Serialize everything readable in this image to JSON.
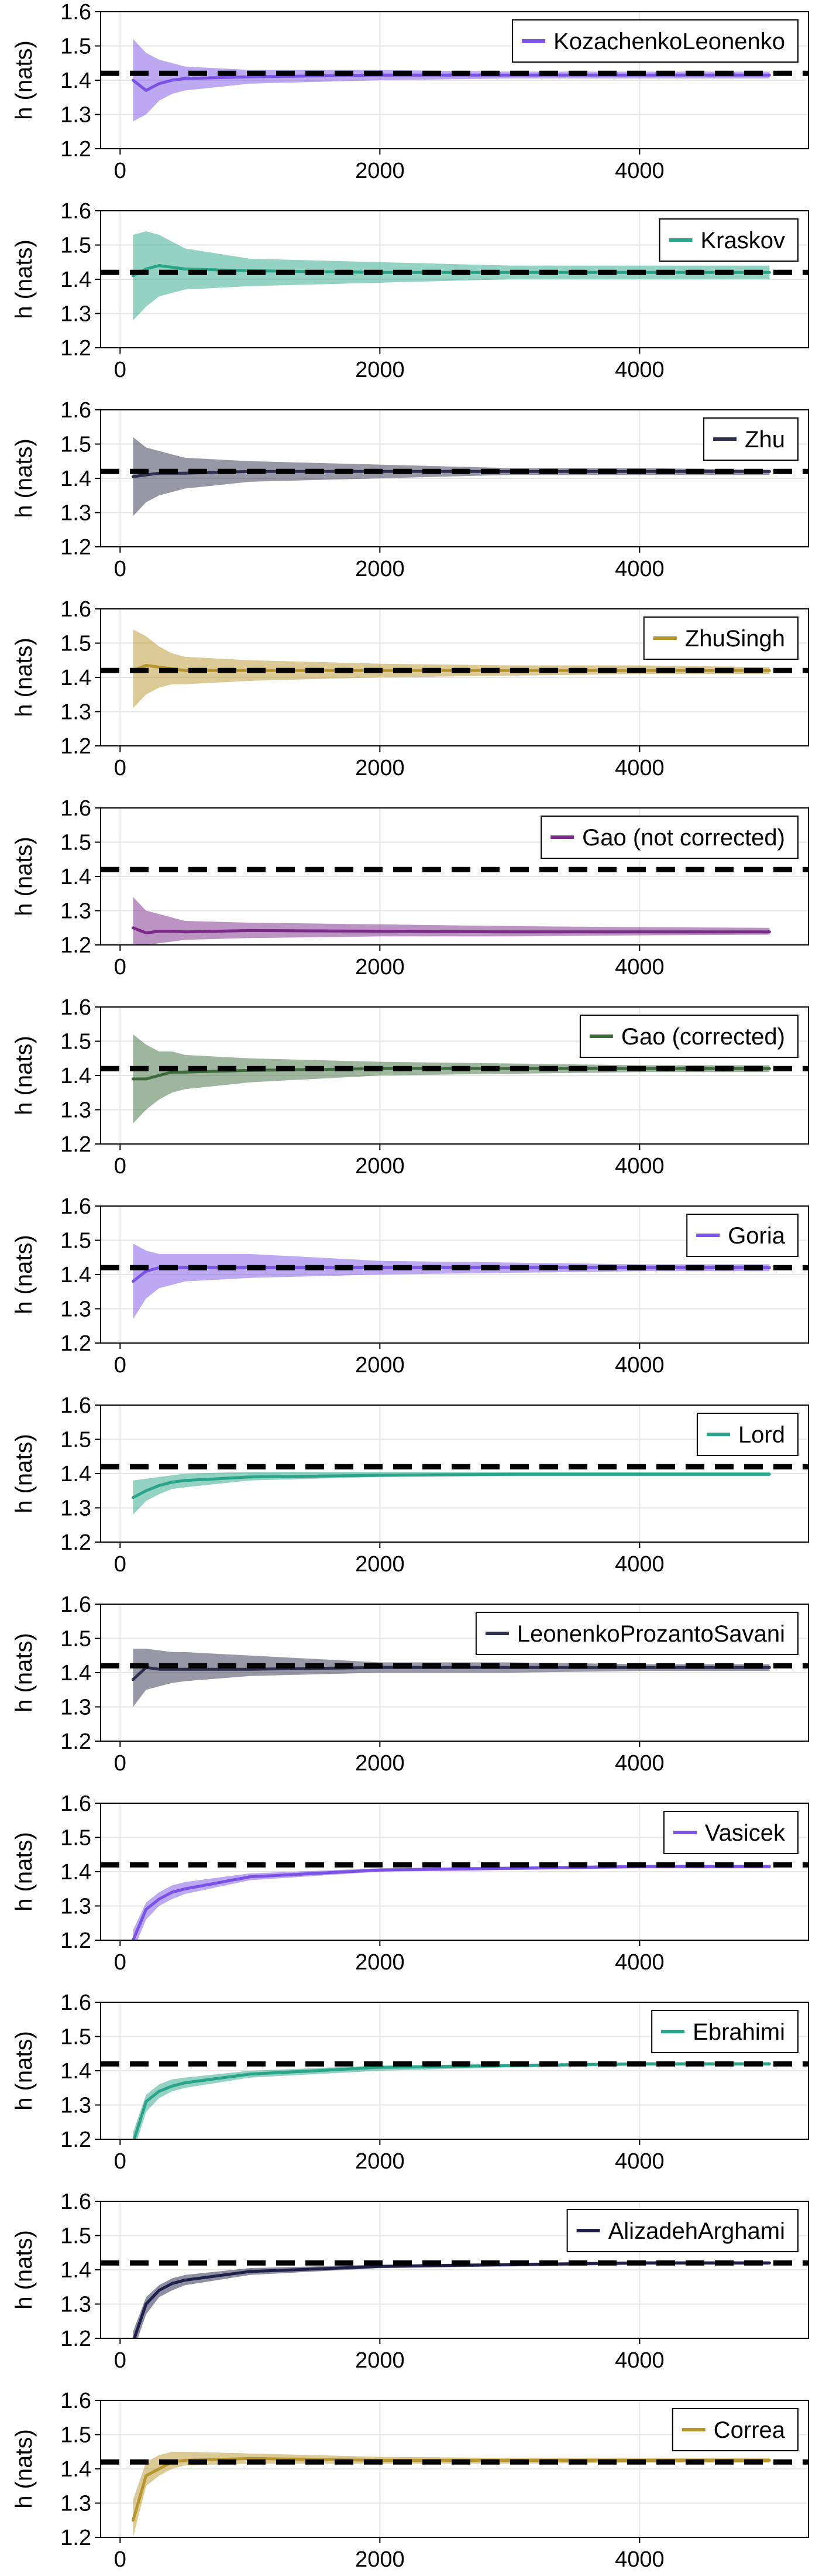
{
  "chart_data": [
    {
      "type": "line",
      "ylabel": "h (nats)",
      "ylim": [
        1.2,
        1.6
      ],
      "xlim": [
        -150,
        5300
      ],
      "xticks": [
        0,
        2000,
        4000
      ],
      "yticks": [
        1.2,
        1.3,
        1.4,
        1.5,
        1.6
      ],
      "reference_y": 1.42,
      "grid": true,
      "legend_position": "top-right",
      "series": [
        {
          "name": "KozachenkoLeonenko",
          "color": "#7b52e6",
          "x": [
            100,
            200,
            300,
            400,
            500,
            1000,
            2000,
            3000,
            4000,
            5000
          ],
          "y": [
            1.4,
            1.37,
            1.39,
            1.4,
            1.405,
            1.41,
            1.415,
            1.415,
            1.415,
            1.415
          ],
          "lower": [
            1.28,
            1.3,
            1.34,
            1.36,
            1.37,
            1.39,
            1.4,
            1.405,
            1.405,
            1.405
          ],
          "upper": [
            1.52,
            1.48,
            1.46,
            1.45,
            1.44,
            1.43,
            1.43,
            1.425,
            1.425,
            1.425
          ]
        }
      ]
    },
    {
      "type": "line",
      "ylabel": "h (nats)",
      "ylim": [
        1.2,
        1.6
      ],
      "xlim": [
        -150,
        5300
      ],
      "xticks": [
        0,
        2000,
        4000
      ],
      "yticks": [
        1.2,
        1.3,
        1.4,
        1.5,
        1.6
      ],
      "reference_y": 1.42,
      "grid": true,
      "legend_position": "top-right",
      "series": [
        {
          "name": "Kraskov",
          "color": "#2aa58a",
          "x": [
            100,
            200,
            300,
            400,
            500,
            1000,
            2000,
            3000,
            4000,
            5000
          ],
          "y": [
            1.41,
            1.43,
            1.44,
            1.435,
            1.43,
            1.425,
            1.42,
            1.42,
            1.42,
            1.42
          ],
          "lower": [
            1.28,
            1.32,
            1.35,
            1.36,
            1.37,
            1.38,
            1.39,
            1.4,
            1.4,
            1.4
          ],
          "upper": [
            1.53,
            1.54,
            1.53,
            1.51,
            1.49,
            1.46,
            1.45,
            1.44,
            1.44,
            1.44
          ]
        }
      ]
    },
    {
      "type": "line",
      "ylabel": "h (nats)",
      "ylim": [
        1.2,
        1.6
      ],
      "xlim": [
        -150,
        5300
      ],
      "xticks": [
        0,
        2000,
        4000
      ],
      "yticks": [
        1.2,
        1.3,
        1.4,
        1.5,
        1.6
      ],
      "reference_y": 1.42,
      "grid": true,
      "legend_position": "top-right",
      "series": [
        {
          "name": "Zhu",
          "color": "#2f2f4e",
          "x": [
            100,
            200,
            300,
            400,
            500,
            1000,
            2000,
            3000,
            4000,
            5000
          ],
          "y": [
            1.405,
            1.41,
            1.415,
            1.415,
            1.415,
            1.42,
            1.42,
            1.42,
            1.42,
            1.42
          ],
          "lower": [
            1.29,
            1.33,
            1.35,
            1.36,
            1.37,
            1.39,
            1.4,
            1.41,
            1.41,
            1.41
          ],
          "upper": [
            1.52,
            1.49,
            1.48,
            1.47,
            1.46,
            1.45,
            1.44,
            1.43,
            1.43,
            1.425
          ]
        }
      ]
    },
    {
      "type": "line",
      "ylabel": "h (nats)",
      "ylim": [
        1.2,
        1.6
      ],
      "xlim": [
        -150,
        5300
      ],
      "xticks": [
        0,
        2000,
        4000
      ],
      "yticks": [
        1.2,
        1.3,
        1.4,
        1.5,
        1.6
      ],
      "reference_y": 1.42,
      "grid": true,
      "legend_position": "top-right",
      "series": [
        {
          "name": "ZhuSingh",
          "color": "#b8962e",
          "x": [
            100,
            200,
            300,
            400,
            500,
            1000,
            2000,
            3000,
            4000,
            5000
          ],
          "y": [
            1.42,
            1.435,
            1.43,
            1.425,
            1.42,
            1.42,
            1.42,
            1.42,
            1.42,
            1.42
          ],
          "lower": [
            1.31,
            1.35,
            1.37,
            1.38,
            1.38,
            1.39,
            1.4,
            1.405,
            1.41,
            1.41
          ],
          "upper": [
            1.54,
            1.52,
            1.49,
            1.47,
            1.46,
            1.45,
            1.44,
            1.435,
            1.435,
            1.43
          ]
        }
      ]
    },
    {
      "type": "line",
      "ylabel": "h (nats)",
      "ylim": [
        1.2,
        1.6
      ],
      "xlim": [
        -150,
        5300
      ],
      "xticks": [
        0,
        2000,
        4000
      ],
      "yticks": [
        1.2,
        1.3,
        1.4,
        1.5,
        1.6
      ],
      "reference_y": 1.42,
      "grid": true,
      "legend_position": "top-right",
      "series": [
        {
          "name": "Gao (not corrected)",
          "color": "#7a2a87",
          "x": [
            100,
            200,
            300,
            400,
            500,
            1000,
            2000,
            3000,
            4000,
            5000
          ],
          "y": [
            1.25,
            1.235,
            1.24,
            1.24,
            1.238,
            1.242,
            1.24,
            1.238,
            1.238,
            1.238
          ],
          "lower": [
            1.2,
            1.2,
            1.205,
            1.21,
            1.215,
            1.22,
            1.225,
            1.225,
            1.228,
            1.23
          ],
          "upper": [
            1.34,
            1.3,
            1.29,
            1.28,
            1.27,
            1.265,
            1.26,
            1.255,
            1.252,
            1.25
          ]
        }
      ]
    },
    {
      "type": "line",
      "ylabel": "h (nats)",
      "ylim": [
        1.2,
        1.6
      ],
      "xlim": [
        -150,
        5300
      ],
      "xticks": [
        0,
        2000,
        4000
      ],
      "yticks": [
        1.2,
        1.3,
        1.4,
        1.5,
        1.6
      ],
      "reference_y": 1.42,
      "grid": true,
      "legend_position": "top-right",
      "series": [
        {
          "name": "Gao (corrected)",
          "color": "#3d6b3d",
          "x": [
            100,
            200,
            300,
            400,
            500,
            1000,
            2000,
            3000,
            4000,
            5000
          ],
          "y": [
            1.39,
            1.39,
            1.4,
            1.41,
            1.41,
            1.415,
            1.42,
            1.42,
            1.42,
            1.42
          ],
          "lower": [
            1.26,
            1.3,
            1.33,
            1.35,
            1.36,
            1.38,
            1.4,
            1.405,
            1.41,
            1.41
          ],
          "upper": [
            1.52,
            1.49,
            1.47,
            1.47,
            1.46,
            1.45,
            1.44,
            1.435,
            1.43,
            1.43
          ]
        }
      ]
    },
    {
      "type": "line",
      "ylabel": "h (nats)",
      "ylim": [
        1.2,
        1.6
      ],
      "xlim": [
        -150,
        5300
      ],
      "xticks": [
        0,
        2000,
        4000
      ],
      "yticks": [
        1.2,
        1.3,
        1.4,
        1.5,
        1.6
      ],
      "reference_y": 1.42,
      "grid": true,
      "legend_position": "top-right",
      "series": [
        {
          "name": "Goria",
          "color": "#7b52e6",
          "x": [
            100,
            200,
            300,
            400,
            500,
            1000,
            2000,
            3000,
            4000,
            5000
          ],
          "y": [
            1.38,
            1.41,
            1.42,
            1.42,
            1.42,
            1.42,
            1.42,
            1.42,
            1.42,
            1.42
          ],
          "lower": [
            1.27,
            1.33,
            1.36,
            1.37,
            1.38,
            1.39,
            1.4,
            1.405,
            1.41,
            1.41
          ],
          "upper": [
            1.49,
            1.47,
            1.46,
            1.46,
            1.46,
            1.46,
            1.44,
            1.435,
            1.43,
            1.43
          ]
        }
      ]
    },
    {
      "type": "line",
      "ylabel": "h (nats)",
      "ylim": [
        1.2,
        1.6
      ],
      "xlim": [
        -150,
        5300
      ],
      "xticks": [
        0,
        2000,
        4000
      ],
      "yticks": [
        1.2,
        1.3,
        1.4,
        1.5,
        1.6
      ],
      "reference_y": 1.42,
      "grid": true,
      "legend_position": "top-right",
      "series": [
        {
          "name": "Lord",
          "color": "#2aa58a",
          "x": [
            100,
            200,
            300,
            400,
            500,
            1000,
            2000,
            3000,
            4000,
            5000
          ],
          "y": [
            1.33,
            1.35,
            1.365,
            1.375,
            1.38,
            1.39,
            1.395,
            1.398,
            1.398,
            1.398
          ],
          "lower": [
            1.28,
            1.32,
            1.34,
            1.355,
            1.36,
            1.38,
            1.39,
            1.393,
            1.393,
            1.393
          ],
          "upper": [
            1.38,
            1.385,
            1.39,
            1.395,
            1.4,
            1.405,
            1.405,
            1.405,
            1.405,
            1.405
          ]
        }
      ]
    },
    {
      "type": "line",
      "ylabel": "h (nats)",
      "ylim": [
        1.2,
        1.6
      ],
      "xlim": [
        -150,
        5300
      ],
      "xticks": [
        0,
        2000,
        4000
      ],
      "yticks": [
        1.2,
        1.3,
        1.4,
        1.5,
        1.6
      ],
      "reference_y": 1.42,
      "grid": true,
      "legend_position": "top-right",
      "series": [
        {
          "name": "LeonenkoProzantoSavani",
          "color": "#2f2f4e",
          "x": [
            100,
            200,
            300,
            400,
            500,
            1000,
            2000,
            3000,
            4000,
            5000
          ],
          "y": [
            1.38,
            1.415,
            1.41,
            1.41,
            1.41,
            1.41,
            1.415,
            1.415,
            1.415,
            1.415
          ],
          "lower": [
            1.3,
            1.35,
            1.36,
            1.37,
            1.375,
            1.39,
            1.4,
            1.4,
            1.405,
            1.405
          ],
          "upper": [
            1.47,
            1.47,
            1.465,
            1.46,
            1.46,
            1.45,
            1.43,
            1.43,
            1.425,
            1.425
          ]
        }
      ]
    },
    {
      "type": "line",
      "ylabel": "h (nats)",
      "ylim": [
        1.2,
        1.6
      ],
      "xlim": [
        -150,
        5300
      ],
      "xticks": [
        0,
        2000,
        4000
      ],
      "yticks": [
        1.2,
        1.3,
        1.4,
        1.5,
        1.6
      ],
      "reference_y": 1.42,
      "grid": true,
      "legend_position": "top-right",
      "series": [
        {
          "name": "Vasicek",
          "color": "#7b52e6",
          "x": [
            100,
            200,
            300,
            400,
            500,
            1000,
            2000,
            3000,
            4000,
            5000
          ],
          "y": [
            1.2,
            1.29,
            1.32,
            1.34,
            1.35,
            1.385,
            1.405,
            1.41,
            1.415,
            1.415
          ],
          "lower": [
            1.17,
            1.26,
            1.3,
            1.32,
            1.335,
            1.375,
            1.4,
            1.405,
            1.41,
            1.41
          ],
          "upper": [
            1.23,
            1.31,
            1.34,
            1.36,
            1.37,
            1.395,
            1.41,
            1.415,
            1.42,
            1.42
          ]
        }
      ]
    },
    {
      "type": "line",
      "ylabel": "h (nats)",
      "ylim": [
        1.2,
        1.6
      ],
      "xlim": [
        -150,
        5300
      ],
      "xticks": [
        0,
        2000,
        4000
      ],
      "yticks": [
        1.2,
        1.3,
        1.4,
        1.5,
        1.6
      ],
      "reference_y": 1.42,
      "grid": true,
      "legend_position": "top-right",
      "series": [
        {
          "name": "Ebrahimi",
          "color": "#2aa58a",
          "x": [
            100,
            200,
            300,
            400,
            500,
            1000,
            2000,
            3000,
            4000,
            5000
          ],
          "y": [
            1.19,
            1.31,
            1.34,
            1.355,
            1.365,
            1.39,
            1.41,
            1.415,
            1.42,
            1.42
          ],
          "lower": [
            1.16,
            1.28,
            1.32,
            1.34,
            1.35,
            1.38,
            1.4,
            1.41,
            1.415,
            1.415
          ],
          "upper": [
            1.22,
            1.33,
            1.36,
            1.375,
            1.38,
            1.4,
            1.415,
            1.42,
            1.425,
            1.425
          ]
        }
      ]
    },
    {
      "type": "line",
      "ylabel": "h (nats)",
      "ylim": [
        1.2,
        1.6
      ],
      "xlim": [
        -150,
        5300
      ],
      "xticks": [
        0,
        2000,
        4000
      ],
      "yticks": [
        1.2,
        1.3,
        1.4,
        1.5,
        1.6
      ],
      "reference_y": 1.42,
      "grid": true,
      "legend_position": "top-right",
      "series": [
        {
          "name": "AlizadehArghami",
          "color": "#20204a",
          "x": [
            100,
            200,
            300,
            400,
            500,
            1000,
            2000,
            3000,
            4000,
            5000
          ],
          "y": [
            1.19,
            1.3,
            1.34,
            1.36,
            1.37,
            1.395,
            1.41,
            1.415,
            1.42,
            1.42
          ],
          "lower": [
            1.16,
            1.27,
            1.32,
            1.34,
            1.355,
            1.385,
            1.405,
            1.41,
            1.415,
            1.415
          ],
          "upper": [
            1.22,
            1.32,
            1.355,
            1.375,
            1.385,
            1.405,
            1.415,
            1.42,
            1.425,
            1.425
          ]
        }
      ]
    },
    {
      "type": "line",
      "ylabel": "h (nats)",
      "ylim": [
        1.2,
        1.6
      ],
      "xlim": [
        -150,
        5300
      ],
      "xticks": [
        0,
        2000,
        4000
      ],
      "yticks": [
        1.2,
        1.3,
        1.4,
        1.5,
        1.6
      ],
      "reference_y": 1.42,
      "grid": true,
      "legend_position": "top-right",
      "series": [
        {
          "name": "Correa",
          "color": "#b8962e",
          "x": [
            100,
            200,
            300,
            400,
            500,
            1000,
            2000,
            3000,
            4000,
            5000
          ],
          "y": [
            1.25,
            1.38,
            1.4,
            1.42,
            1.425,
            1.43,
            1.425,
            1.425,
            1.425,
            1.425
          ],
          "lower": [
            1.2,
            1.35,
            1.38,
            1.4,
            1.41,
            1.415,
            1.415,
            1.415,
            1.418,
            1.418
          ],
          "upper": [
            1.31,
            1.42,
            1.44,
            1.45,
            1.45,
            1.445,
            1.435,
            1.432,
            1.432,
            1.432
          ]
        }
      ]
    }
  ]
}
